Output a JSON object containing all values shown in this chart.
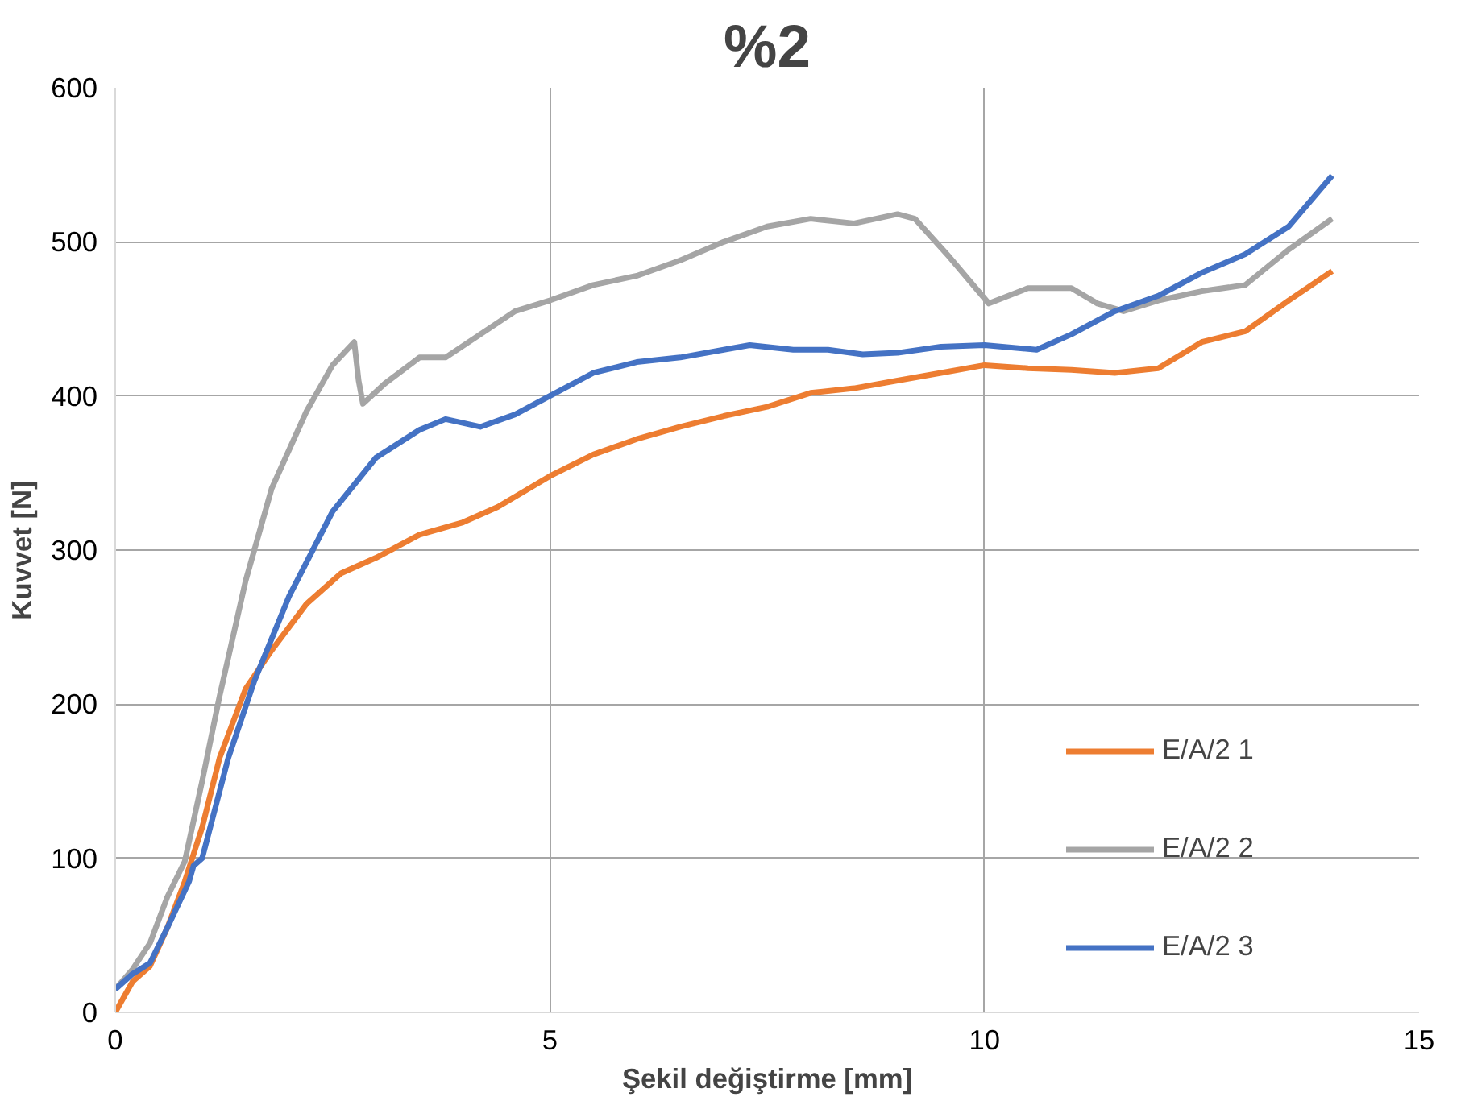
{
  "chart_data": {
    "type": "line",
    "title": "%2",
    "xlabel": "Şekil değiştirme [mm]",
    "ylabel": "Kuvvet [N]",
    "xlim": [
      0,
      15
    ],
    "xticks": [
      0,
      5,
      10,
      15
    ],
    "ylim": [
      0,
      600
    ],
    "yticks": [
      0,
      100,
      200,
      300,
      400,
      500,
      600
    ],
    "grid": true,
    "legend": "bottom right",
    "marker": "none",
    "line_style": "solid",
    "series": [
      {
        "name": "E/A/2 1",
        "color": "#ed7d31",
        "x": [
          0,
          0.2,
          0.4,
          0.6,
          0.8,
          1.0,
          1.2,
          1.5,
          1.8,
          2.2,
          2.6,
          3,
          3.5,
          4,
          4.4,
          5,
          5.5,
          6,
          6.5,
          7,
          7.5,
          8,
          8.5,
          9,
          9.5,
          10,
          10.5,
          11,
          11.5,
          12,
          12.5,
          13,
          13.5,
          14
        ],
        "values": [
          0,
          20,
          30,
          55,
          85,
          120,
          165,
          210,
          235,
          265,
          285,
          295,
          310,
          318,
          328,
          348,
          362,
          372,
          380,
          387,
          393,
          402,
          405,
          410,
          415,
          420,
          418,
          417,
          415,
          418,
          435,
          442,
          462,
          481
        ]
      },
      {
        "name": "E/A/2 2",
        "color": "#a5a5a5",
        "x": [
          0,
          0.2,
          0.4,
          0.6,
          0.8,
          1.0,
          1.2,
          1.5,
          1.8,
          2.2,
          2.5,
          2.75,
          2.8,
          2.85,
          3.1,
          3.5,
          3.8,
          4.2,
          4.6,
          5,
          5.5,
          6,
          6.5,
          7,
          7.5,
          8,
          8.5,
          9,
          9.2,
          9.6,
          10.05,
          10.5,
          11,
          11.3,
          11.6,
          12,
          12.5,
          13,
          13.5,
          14
        ],
        "values": [
          15,
          28,
          45,
          75,
          98,
          150,
          205,
          280,
          340,
          390,
          420,
          435,
          410,
          395,
          408,
          425,
          425,
          440,
          455,
          462,
          472,
          478,
          488,
          500,
          510,
          515,
          512,
          518,
          515,
          490,
          460,
          470,
          470,
          460,
          455,
          462,
          468,
          472,
          495,
          515
        ]
      },
      {
        "name": "E/A/2 3",
        "color": "#4472c4",
        "x": [
          0,
          0.2,
          0.4,
          0.6,
          0.85,
          0.9,
          1.0,
          1.3,
          1.6,
          2,
          2.5,
          3,
          3.5,
          3.8,
          4.2,
          4.6,
          5,
          5.5,
          6,
          6.5,
          7,
          7.3,
          7.8,
          8.2,
          8.6,
          9,
          9.5,
          10,
          10.6,
          11,
          11.5,
          12,
          12.5,
          13,
          13.5,
          14
        ],
        "values": [
          15,
          25,
          32,
          55,
          85,
          95,
          100,
          165,
          215,
          270,
          325,
          360,
          378,
          385,
          380,
          388,
          400,
          415,
          422,
          425,
          430,
          433,
          430,
          430,
          427,
          428,
          432,
          433,
          430,
          440,
          455,
          465,
          480,
          492,
          510,
          543
        ]
      }
    ]
  }
}
